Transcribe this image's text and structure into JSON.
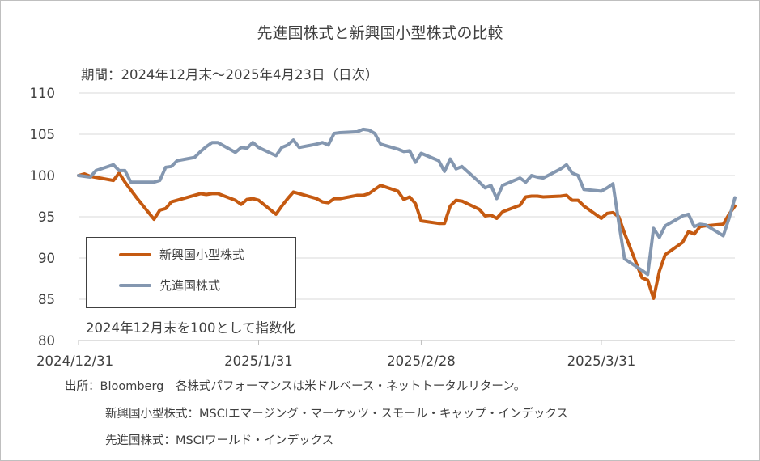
{
  "chart_data": {
    "type": "line",
    "title": "先進国株式と新興国小型株式の比較",
    "subtitle": "期間：2024年12月末〜2025年4月23日（日次）",
    "annotation": "2024年12月末を100として指数化",
    "ylim": [
      80,
      110
    ],
    "yticks": [
      "110",
      "105",
      "100",
      "95",
      "90",
      "85",
      "80"
    ],
    "xticks": [
      {
        "label": "2024/12/31",
        "date": "2024-12-31"
      },
      {
        "label": "2025/1/31",
        "date": "2025-01-31"
      },
      {
        "label": "2025/2/28",
        "date": "2025-02-28"
      },
      {
        "label": "2025/3/31",
        "date": "2025-03-31"
      }
    ],
    "x_end_date": "2025-04-23",
    "grid": true,
    "legend_placement": "bottom-left",
    "series": [
      {
        "name": "新興国小型株式",
        "color": "#c55a11",
        "points": [
          [
            "2024-12-31",
            100.0
          ],
          [
            "2025-01-01",
            100.2
          ],
          [
            "2025-01-02",
            99.9
          ],
          [
            "2025-01-06",
            99.4
          ],
          [
            "2025-01-07",
            100.3
          ],
          [
            "2025-01-08",
            99.2
          ],
          [
            "2025-01-10",
            97.3
          ],
          [
            "2025-01-13",
            94.7
          ],
          [
            "2025-01-14",
            95.8
          ],
          [
            "2025-01-15",
            96.0
          ],
          [
            "2025-01-16",
            96.8
          ],
          [
            "2025-01-17",
            97.0
          ],
          [
            "2025-01-21",
            97.8
          ],
          [
            "2025-01-22",
            97.7
          ],
          [
            "2025-01-23",
            97.8
          ],
          [
            "2025-01-24",
            97.8
          ],
          [
            "2025-01-27",
            97.0
          ],
          [
            "2025-01-28",
            96.5
          ],
          [
            "2025-01-29",
            97.1
          ],
          [
            "2025-01-30",
            97.2
          ],
          [
            "2025-01-31",
            97.0
          ],
          [
            "2025-02-03",
            95.3
          ],
          [
            "2025-02-04",
            96.3
          ],
          [
            "2025-02-05",
            97.2
          ],
          [
            "2025-02-06",
            98.0
          ],
          [
            "2025-02-07",
            97.8
          ],
          [
            "2025-02-10",
            97.2
          ],
          [
            "2025-02-11",
            96.8
          ],
          [
            "2025-02-12",
            96.7
          ],
          [
            "2025-02-13",
            97.2
          ],
          [
            "2025-02-14",
            97.2
          ],
          [
            "2025-02-17",
            97.6
          ],
          [
            "2025-02-18",
            97.6
          ],
          [
            "2025-02-19",
            97.8
          ],
          [
            "2025-02-20",
            98.3
          ],
          [
            "2025-02-21",
            98.8
          ],
          [
            "2025-02-24",
            98.1
          ],
          [
            "2025-02-25",
            97.1
          ],
          [
            "2025-02-26",
            97.4
          ],
          [
            "2025-02-27",
            96.6
          ],
          [
            "2025-02-28",
            94.5
          ],
          [
            "2025-03-03",
            94.2
          ],
          [
            "2025-03-04",
            94.2
          ],
          [
            "2025-03-05",
            96.3
          ],
          [
            "2025-03-06",
            97.0
          ],
          [
            "2025-03-07",
            96.9
          ],
          [
            "2025-03-10",
            95.9
          ],
          [
            "2025-03-11",
            95.1
          ],
          [
            "2025-03-12",
            95.2
          ],
          [
            "2025-03-13",
            94.8
          ],
          [
            "2025-03-14",
            95.6
          ],
          [
            "2025-03-17",
            96.4
          ],
          [
            "2025-03-18",
            97.4
          ],
          [
            "2025-03-19",
            97.5
          ],
          [
            "2025-03-20",
            97.5
          ],
          [
            "2025-03-21",
            97.4
          ],
          [
            "2025-03-24",
            97.5
          ],
          [
            "2025-03-25",
            97.6
          ],
          [
            "2025-03-26",
            97.0
          ],
          [
            "2025-03-27",
            97.0
          ],
          [
            "2025-03-28",
            96.3
          ],
          [
            "2025-03-31",
            94.8
          ],
          [
            "2025-04-01",
            95.4
          ],
          [
            "2025-04-02",
            95.5
          ],
          [
            "2025-04-03",
            95.0
          ],
          [
            "2025-04-04",
            93.0
          ],
          [
            "2025-04-07",
            87.6
          ],
          [
            "2025-04-08",
            87.3
          ],
          [
            "2025-04-09",
            85.1
          ],
          [
            "2025-04-10",
            88.4
          ],
          [
            "2025-04-11",
            90.4
          ],
          [
            "2025-04-14",
            91.9
          ],
          [
            "2025-04-15",
            93.2
          ],
          [
            "2025-04-16",
            92.9
          ],
          [
            "2025-04-17",
            93.8
          ],
          [
            "2025-04-18",
            93.9
          ],
          [
            "2025-04-21",
            94.1
          ],
          [
            "2025-04-22",
            95.3
          ],
          [
            "2025-04-23",
            96.3
          ]
        ]
      },
      {
        "name": "先進国株式",
        "color": "#8497b0",
        "points": [
          [
            "2024-12-31",
            100.0
          ],
          [
            "2025-01-02",
            99.8
          ],
          [
            "2025-01-03",
            100.6
          ],
          [
            "2025-01-06",
            101.3
          ],
          [
            "2025-01-07",
            100.6
          ],
          [
            "2025-01-08",
            100.6
          ],
          [
            "2025-01-09",
            99.2
          ],
          [
            "2025-01-10",
            99.2
          ],
          [
            "2025-01-13",
            99.2
          ],
          [
            "2025-01-14",
            99.4
          ],
          [
            "2025-01-15",
            101.0
          ],
          [
            "2025-01-16",
            101.1
          ],
          [
            "2025-01-17",
            101.8
          ],
          [
            "2025-01-20",
            102.2
          ],
          [
            "2025-01-21",
            102.9
          ],
          [
            "2025-01-22",
            103.5
          ],
          [
            "2025-01-23",
            104.0
          ],
          [
            "2025-01-24",
            104.0
          ],
          [
            "2025-01-27",
            102.8
          ],
          [
            "2025-01-28",
            103.4
          ],
          [
            "2025-01-29",
            103.3
          ],
          [
            "2025-01-30",
            104.0
          ],
          [
            "2025-01-31",
            103.4
          ],
          [
            "2025-02-03",
            102.4
          ],
          [
            "2025-02-04",
            103.4
          ],
          [
            "2025-02-05",
            103.7
          ],
          [
            "2025-02-06",
            104.3
          ],
          [
            "2025-02-07",
            103.4
          ],
          [
            "2025-02-10",
            103.8
          ],
          [
            "2025-02-11",
            104.0
          ],
          [
            "2025-02-12",
            103.7
          ],
          [
            "2025-02-13",
            105.1
          ],
          [
            "2025-02-14",
            105.2
          ],
          [
            "2025-02-17",
            105.3
          ],
          [
            "2025-02-18",
            105.6
          ],
          [
            "2025-02-19",
            105.5
          ],
          [
            "2025-02-20",
            105.1
          ],
          [
            "2025-02-21",
            103.8
          ],
          [
            "2025-02-24",
            103.2
          ],
          [
            "2025-02-25",
            102.9
          ],
          [
            "2025-02-26",
            103.0
          ],
          [
            "2025-02-27",
            101.6
          ],
          [
            "2025-02-28",
            102.7
          ],
          [
            "2025-03-03",
            101.8
          ],
          [
            "2025-03-04",
            100.5
          ],
          [
            "2025-03-05",
            102.0
          ],
          [
            "2025-03-06",
            100.8
          ],
          [
            "2025-03-07",
            101.1
          ],
          [
            "2025-03-10",
            99.2
          ],
          [
            "2025-03-11",
            98.5
          ],
          [
            "2025-03-12",
            98.8
          ],
          [
            "2025-03-13",
            97.2
          ],
          [
            "2025-03-14",
            98.8
          ],
          [
            "2025-03-17",
            99.7
          ],
          [
            "2025-03-18",
            99.2
          ],
          [
            "2025-03-19",
            100.0
          ],
          [
            "2025-03-20",
            99.8
          ],
          [
            "2025-03-21",
            99.7
          ],
          [
            "2025-03-24",
            100.8
          ],
          [
            "2025-03-25",
            101.3
          ],
          [
            "2025-03-26",
            100.3
          ],
          [
            "2025-03-27",
            100.0
          ],
          [
            "2025-03-28",
            98.3
          ],
          [
            "2025-03-31",
            98.1
          ],
          [
            "2025-04-01",
            98.5
          ],
          [
            "2025-04-02",
            99.0
          ],
          [
            "2025-04-03",
            94.3
          ],
          [
            "2025-04-04",
            89.9
          ],
          [
            "2025-04-07",
            88.5
          ],
          [
            "2025-04-08",
            88.0
          ],
          [
            "2025-04-09",
            93.6
          ],
          [
            "2025-04-10",
            92.5
          ],
          [
            "2025-04-11",
            93.9
          ],
          [
            "2025-04-14",
            95.1
          ],
          [
            "2025-04-15",
            95.3
          ],
          [
            "2025-04-16",
            93.8
          ],
          [
            "2025-04-17",
            94.1
          ],
          [
            "2025-04-18",
            94.0
          ],
          [
            "2025-04-21",
            92.7
          ],
          [
            "2025-04-22",
            94.8
          ],
          [
            "2025-04-23",
            97.3
          ]
        ]
      }
    ]
  },
  "legend": {
    "items": [
      {
        "label": "新興国小型株式",
        "color": "#c55a11"
      },
      {
        "label": "先進国株式",
        "color": "#8497b0"
      }
    ]
  },
  "source": {
    "line1": "出所：Bloomberg　各株式パフォーマンスは米ドルベース・ネットトータルリターン。",
    "line2": "新興国小型株式：MSCIエマージング・マーケッツ・スモール・キャップ・インデックス",
    "line3": "先進国株式：MSCIワールド・インデックス"
  }
}
